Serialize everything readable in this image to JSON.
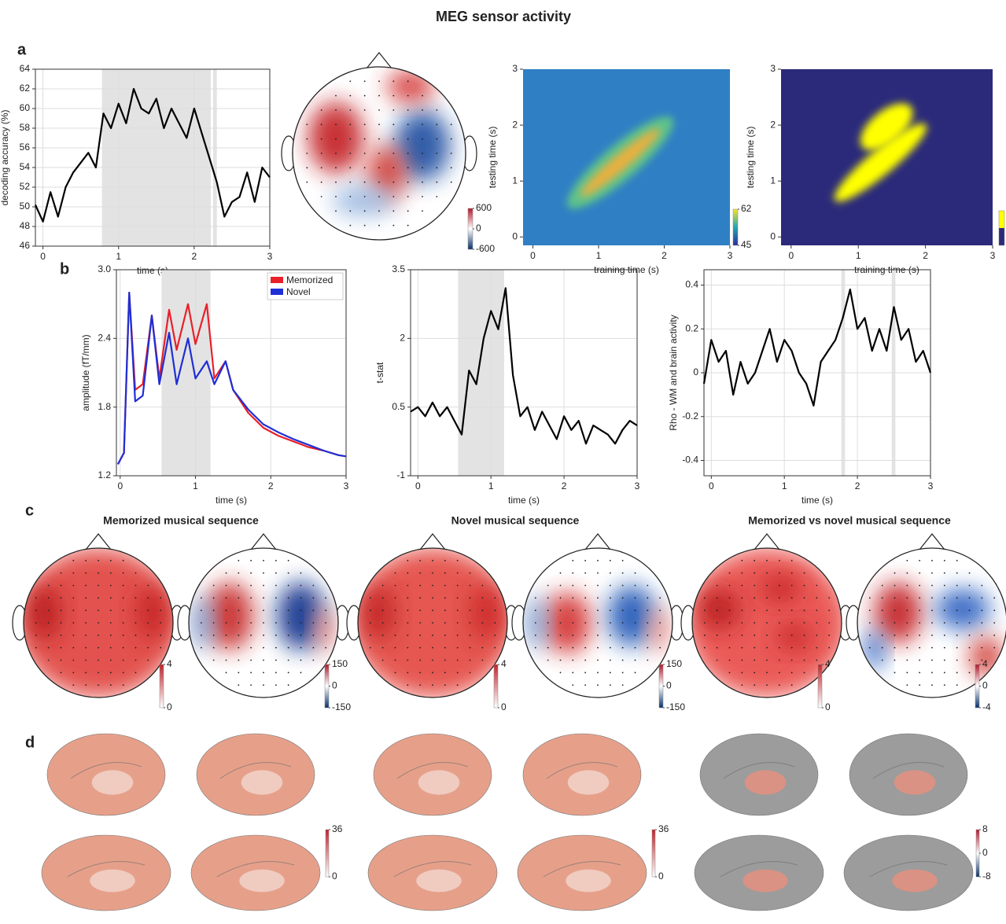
{
  "title": "MEG sensor activity",
  "panel_labels": [
    "a",
    "b",
    "c",
    "d"
  ],
  "chart_data": [
    {
      "type": "line",
      "xlabel": "time (s)",
      "ylabel": "decoding accuracy (%)",
      "color": "#000000",
      "grid": true,
      "xlim": [
        -0.1,
        3
      ],
      "xticks": [
        0,
        1,
        2,
        3
      ],
      "ylim": [
        46,
        64
      ],
      "yticks": [
        46,
        48,
        50,
        52,
        54,
        56,
        58,
        60,
        62,
        64
      ],
      "shaded": [
        [
          0.78,
          2.22
        ],
        [
          2.25,
          2.3
        ]
      ],
      "x": [
        -0.1,
        0,
        0.1,
        0.2,
        0.3,
        0.4,
        0.5,
        0.6,
        0.7,
        0.8,
        0.9,
        1.0,
        1.1,
        1.2,
        1.3,
        1.4,
        1.5,
        1.6,
        1.7,
        1.8,
        1.9,
        2.0,
        2.1,
        2.2,
        2.3,
        2.4,
        2.5,
        2.6,
        2.7,
        2.8,
        2.9,
        3.0
      ],
      "values": [
        50.2,
        48.5,
        51.5,
        49,
        52,
        53.5,
        54.5,
        55.5,
        54,
        59.5,
        58,
        60.5,
        58.5,
        62,
        60,
        59.5,
        61,
        58,
        60,
        58.5,
        57,
        60,
        57.5,
        55,
        52.5,
        49,
        50.5,
        51,
        53.5,
        50.5,
        54,
        53
      ]
    },
    {
      "type": "topomap",
      "clim": [
        -600,
        600
      ],
      "cticks": [
        600,
        0,
        -600
      ]
    },
    {
      "type": "heatmap",
      "xlabel": "training time (s)",
      "ylabel": "testing time (s)",
      "xlim": [
        -0.15,
        3
      ],
      "xticks": [
        0,
        1,
        2,
        3
      ],
      "ylim": [
        -0.15,
        3
      ],
      "yticks": [
        0,
        1,
        2,
        3
      ],
      "clim": [
        45,
        62
      ],
      "cticks": [
        62,
        45
      ]
    },
    {
      "type": "heatmap",
      "xlabel": "training time (s)",
      "ylabel": "testing time (s)",
      "xlim": [
        -0.15,
        3
      ],
      "xticks": [
        0,
        1,
        2,
        3
      ],
      "ylim": [
        -0.15,
        3
      ],
      "yticks": [
        0,
        1,
        2,
        3
      ]
    },
    {
      "type": "line",
      "xlabel": "time (s)",
      "ylabel": "amplitude (fT/mm)",
      "grid": true,
      "legend": "upper right",
      "xlim": [
        -0.05,
        3
      ],
      "xticks": [
        0,
        1,
        2,
        3
      ],
      "ylim": [
        1.2,
        3.0
      ],
      "yticks": [
        1.2,
        1.8,
        2.4,
        {
          "value": 3,
          "label": "3.0"
        }
      ],
      "shaded": [
        [
          0.55,
          1.2
        ]
      ],
      "x": [
        -0.03,
        0.05,
        0.12,
        0.2,
        0.3,
        0.42,
        0.52,
        0.65,
        0.75,
        0.9,
        1.0,
        1.15,
        1.25,
        1.4,
        1.5,
        1.7,
        1.9,
        2.1,
        2.3,
        2.5,
        2.7,
        2.9,
        3.0
      ],
      "series": [
        {
          "name": "Memorized",
          "color": "#e8202a",
          "values": [
            1.3,
            1.4,
            2.8,
            1.95,
            2.0,
            2.6,
            2.05,
            2.65,
            2.3,
            2.7,
            2.35,
            2.7,
            2.05,
            2.2,
            1.95,
            1.75,
            1.62,
            1.55,
            1.5,
            1.45,
            1.42,
            1.38,
            1.37
          ]
        },
        {
          "name": "Novel",
          "color": "#1f2fd6",
          "values": [
            1.3,
            1.4,
            2.8,
            1.85,
            1.9,
            2.6,
            2.0,
            2.45,
            2.0,
            2.4,
            2.05,
            2.2,
            2.0,
            2.2,
            1.95,
            1.78,
            1.65,
            1.58,
            1.52,
            1.47,
            1.42,
            1.38,
            1.37
          ]
        }
      ]
    },
    {
      "type": "line",
      "xlabel": "time (s)",
      "ylabel": "t-stat",
      "color": "#000000",
      "grid": true,
      "xlim": [
        -0.1,
        3
      ],
      "xticks": [
        0,
        1,
        2,
        3
      ],
      "ylim": [
        -1,
        3.5
      ],
      "yticks": [
        -1,
        0.5,
        2,
        3.5
      ],
      "shaded": [
        [
          0.55,
          1.18
        ]
      ],
      "x": [
        -0.1,
        0,
        0.1,
        0.2,
        0.3,
        0.4,
        0.5,
        0.6,
        0.7,
        0.8,
        0.9,
        1.0,
        1.1,
        1.2,
        1.3,
        1.4,
        1.5,
        1.6,
        1.7,
        1.8,
        1.9,
        2.0,
        2.1,
        2.2,
        2.3,
        2.4,
        2.5,
        2.6,
        2.7,
        2.8,
        2.9,
        3.0
      ],
      "values": [
        0.4,
        0.5,
        0.3,
        0.6,
        0.3,
        0.5,
        0.2,
        -0.1,
        1.3,
        1.0,
        2.0,
        2.6,
        2.2,
        3.1,
        1.2,
        0.3,
        0.5,
        0.0,
        0.4,
        0.1,
        -0.2,
        0.3,
        0.0,
        0.2,
        -0.3,
        0.1,
        0.0,
        -0.1,
        -0.3,
        0.0,
        0.2,
        0.1
      ]
    },
    {
      "type": "line",
      "xlabel": "time (s)",
      "ylabel": "Rho - WM and brain activity",
      "color": "#000000",
      "grid": true,
      "xlim": [
        -0.1,
        3
      ],
      "xticks": [
        0,
        1,
        2,
        3
      ],
      "ylim": [
        -0.47,
        0.47
      ],
      "yticks": [
        -0.4,
        -0.2,
        0,
        0.2,
        0.4
      ],
      "shaded": [
        [
          1.78,
          1.83
        ],
        [
          2.47,
          2.52
        ]
      ],
      "x": [
        -0.1,
        0,
        0.1,
        0.2,
        0.3,
        0.4,
        0.5,
        0.6,
        0.7,
        0.8,
        0.9,
        1.0,
        1.1,
        1.2,
        1.3,
        1.4,
        1.5,
        1.6,
        1.7,
        1.8,
        1.9,
        2.0,
        2.1,
        2.2,
        2.3,
        2.4,
        2.5,
        2.6,
        2.7,
        2.8,
        2.9,
        3.0
      ],
      "values": [
        -0.05,
        0.15,
        0.05,
        0.1,
        -0.1,
        0.05,
        -0.05,
        0.0,
        0.1,
        0.2,
        0.05,
        0.15,
        0.1,
        0.0,
        -0.05,
        -0.15,
        0.05,
        0.1,
        0.15,
        0.25,
        0.38,
        0.2,
        0.25,
        0.1,
        0.2,
        0.1,
        0.3,
        0.15,
        0.2,
        0.05,
        0.1,
        0.0
      ]
    },
    {
      "type": "topomap",
      "title": "Memorized musical sequence",
      "clim": [
        0,
        4
      ],
      "cticks": [
        4,
        0
      ]
    },
    {
      "type": "topomap",
      "clim": [
        -150,
        150
      ],
      "cticks": [
        150,
        0,
        -150
      ]
    },
    {
      "type": "topomap",
      "title": "Novel musical sequence",
      "clim": [
        0,
        4
      ],
      "cticks": [
        4,
        0
      ]
    },
    {
      "type": "topomap",
      "clim": [
        -150,
        150
      ],
      "cticks": [
        150,
        0,
        -150
      ]
    },
    {
      "type": "topomap",
      "title": "Memorized vs novel musical sequence",
      "clim": [
        0,
        4
      ],
      "cticks": [
        4,
        0
      ]
    },
    {
      "type": "topomap",
      "clim": [
        -4,
        4
      ],
      "cticks": [
        4,
        0,
        -4
      ]
    },
    {
      "type": "brain",
      "clim": [
        0,
        36
      ],
      "cticks": [
        36,
        0
      ]
    },
    {
      "type": "brain",
      "clim": [
        0,
        36
      ],
      "cticks": [
        36,
        0
      ]
    },
    {
      "type": "brain",
      "clim": [
        -8,
        8
      ],
      "cticks": [
        8,
        0,
        -8
      ]
    }
  ]
}
